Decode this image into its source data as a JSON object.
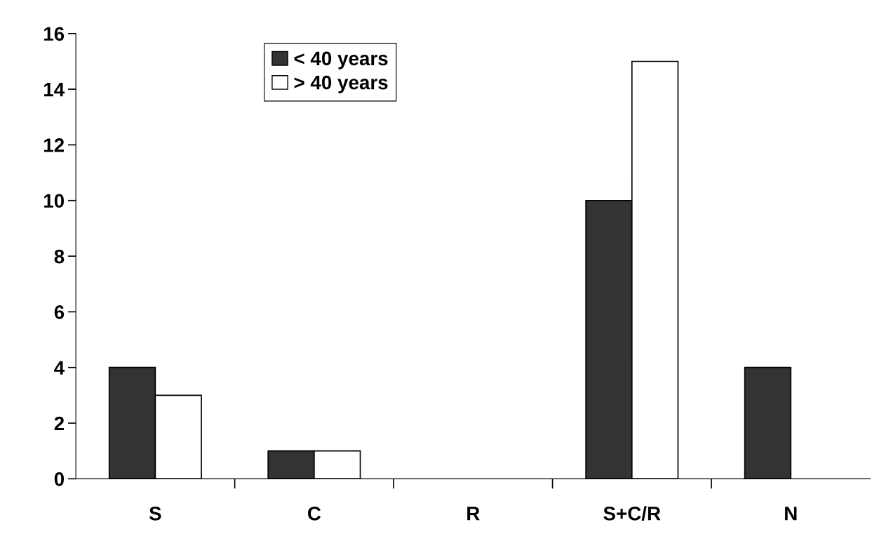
{
  "chart_data": {
    "type": "bar",
    "categories": [
      "S",
      "C",
      "R",
      "S+C/R",
      "N"
    ],
    "series": [
      {
        "name": "< 40 years",
        "color": "#333333",
        "values": [
          4,
          1,
          0,
          10,
          4
        ]
      },
      {
        "name": "> 40 years",
        "color": "#ffffff",
        "values": [
          3,
          1,
          0,
          15,
          0
        ]
      }
    ],
    "ylim": [
      0,
      16
    ],
    "yticks": [
      0,
      2,
      4,
      6,
      8,
      10,
      12,
      14,
      16
    ],
    "grid": false,
    "legend": "top left"
  }
}
